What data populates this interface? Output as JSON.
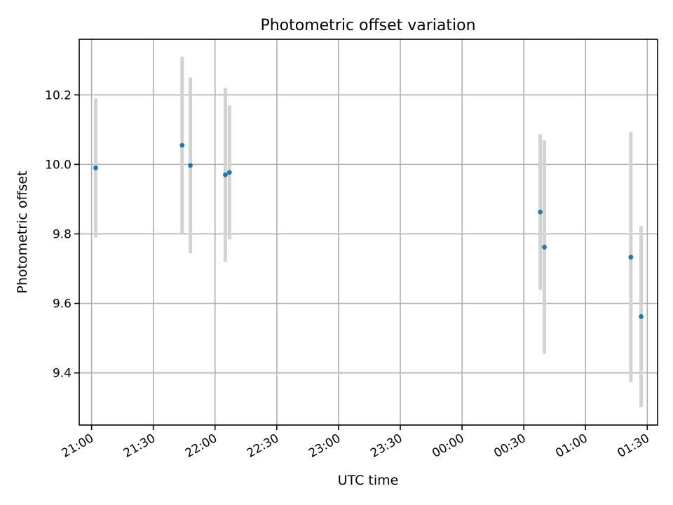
{
  "chart_data": {
    "type": "scatter",
    "title": "Photometric offset variation",
    "xlabel": "UTC time",
    "ylabel": "Photometric offset",
    "x_unit": "UTC time (HH:MM)",
    "xlim": [
      "20:54",
      "01:35"
    ],
    "ylim": [
      9.25,
      10.36
    ],
    "x_ticks": [
      "21:00",
      "21:30",
      "22:00",
      "22:30",
      "23:00",
      "23:30",
      "00:00",
      "00:30",
      "01:00",
      "01:30"
    ],
    "y_ticks": [
      9.4,
      9.6,
      9.8,
      10.0,
      10.2
    ],
    "y_tick_labels": [
      "9.4",
      "9.6",
      "9.8",
      "10.0",
      "10.2"
    ],
    "grid": true,
    "marker_color": "#1f77b4",
    "errorbar_color": "#d3d3d3",
    "points": [
      {
        "x": "21:02",
        "y": 9.99,
        "err": 0.2
      },
      {
        "x": "21:44",
        "y": 10.055,
        "err": 0.255
      },
      {
        "x": "21:48",
        "y": 9.997,
        "err": 0.253
      },
      {
        "x": "22:05",
        "y": 9.97,
        "err": 0.25
      },
      {
        "x": "22:07",
        "y": 9.977,
        "err": 0.193
      },
      {
        "x": "00:38",
        "y": 9.863,
        "err": 0.224
      },
      {
        "x": "00:40",
        "y": 9.762,
        "err": 0.307
      },
      {
        "x": "01:22",
        "y": 9.733,
        "err": 0.36
      },
      {
        "x": "01:27",
        "y": 9.562,
        "err": 0.26
      }
    ]
  }
}
